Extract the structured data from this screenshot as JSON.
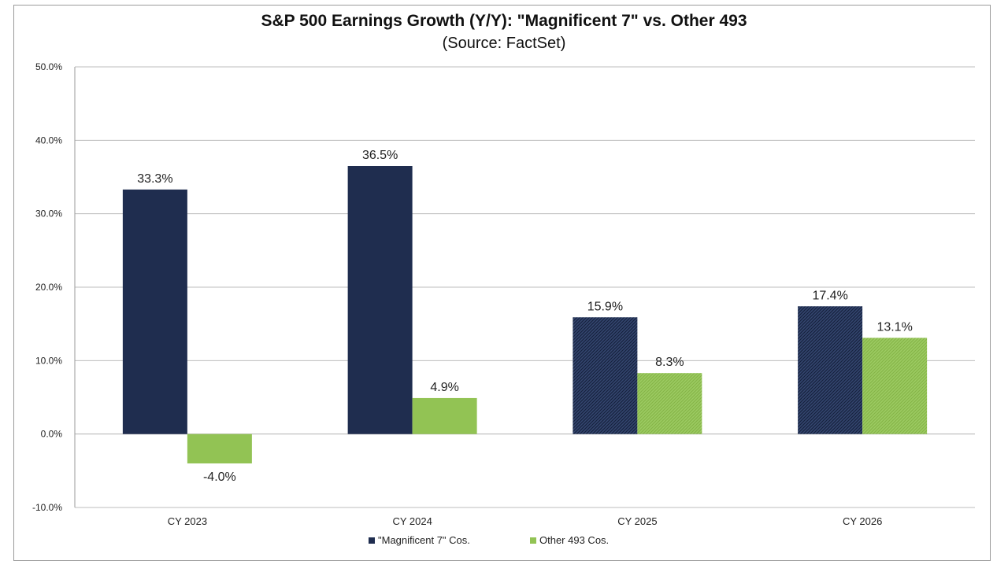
{
  "chart_data": {
    "type": "bar",
    "title": "S&P 500 Earnings Growth (Y/Y): \"Magnificent 7\" vs. Other 493",
    "subtitle": "(Source: FactSet)",
    "xlabel": "",
    "ylabel": "",
    "ylim": [
      -10,
      50
    ],
    "yticks": [
      -10,
      0,
      10,
      20,
      30,
      40,
      50
    ],
    "ytick_labels": [
      "-10.0%",
      "0.0%",
      "10.0%",
      "20.0%",
      "30.0%",
      "40.0%",
      "50.0%"
    ],
    "categories": [
      "CY 2023",
      "CY 2024",
      "CY 2025",
      "CY 2026"
    ],
    "series": [
      {
        "name": "\"Magnificent 7\" Cos.",
        "color": "#1f2d4f",
        "values": [
          33.3,
          36.5,
          15.9,
          17.4
        ],
        "labels": [
          "33.3%",
          "36.5%",
          "15.9%",
          "17.4%"
        ],
        "hatched": [
          false,
          false,
          true,
          true
        ]
      },
      {
        "name": "Other 493 Cos.",
        "color": "#92c354",
        "values": [
          -4.0,
          4.9,
          8.3,
          13.1
        ],
        "labels": [
          "-4.0%",
          "4.9%",
          "8.3%",
          "13.1%"
        ],
        "hatched": [
          false,
          false,
          true,
          true
        ]
      }
    ],
    "grid": true,
    "legend": "bottom-center"
  }
}
